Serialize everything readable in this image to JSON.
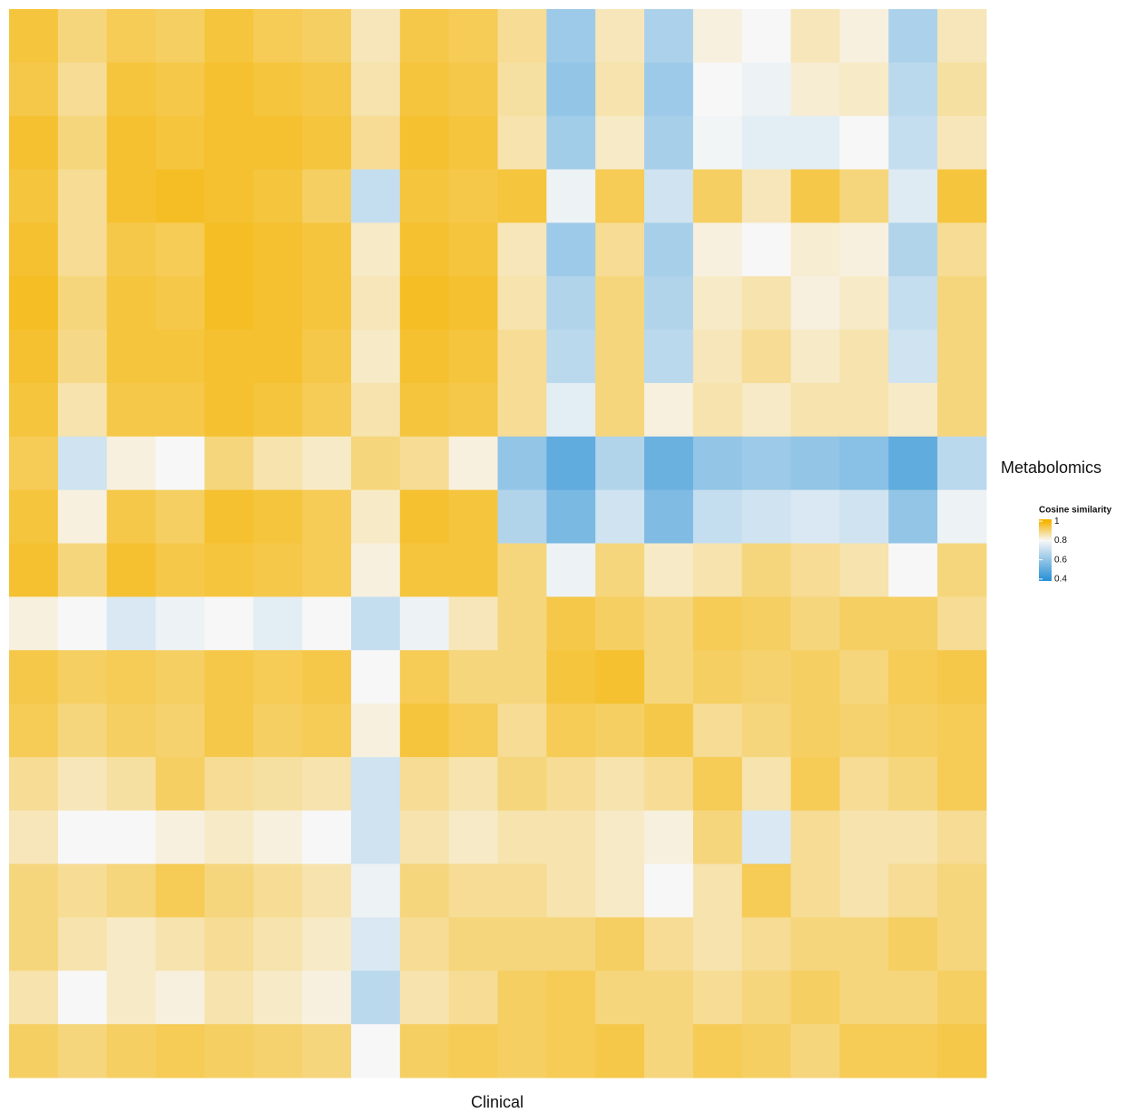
{
  "chart_data": {
    "type": "heatmap",
    "xlabel": "Clinical",
    "ylabel": "Metabolomics",
    "legend_title": "Cosine similarity",
    "clim": [
      0.38,
      1.02
    ],
    "colorbar_ticks": [
      1,
      0.8,
      0.6,
      0.4
    ],
    "colorscale": [
      {
        "value": 0.4,
        "color": "#2f93d6"
      },
      {
        "value": 0.8,
        "color": "#f7f7f7"
      },
      {
        "value": 1,
        "color": "#f5b400"
      }
    ],
    "values": [
      [
        0.95,
        0.9,
        0.93,
        0.92,
        0.95,
        0.93,
        0.92,
        0.85,
        0.94,
        0.93,
        0.88,
        0.62,
        0.85,
        0.65,
        0.82,
        0.8,
        0.85,
        0.82,
        0.65,
        0.85
      ],
      [
        0.94,
        0.88,
        0.95,
        0.94,
        0.96,
        0.95,
        0.94,
        0.86,
        0.95,
        0.94,
        0.87,
        0.6,
        0.86,
        0.62,
        0.8,
        0.78,
        0.83,
        0.84,
        0.68,
        0.87
      ],
      [
        0.96,
        0.9,
        0.96,
        0.95,
        0.96,
        0.96,
        0.95,
        0.88,
        0.96,
        0.95,
        0.86,
        0.63,
        0.84,
        0.64,
        0.79,
        0.76,
        0.76,
        0.8,
        0.7,
        0.85
      ],
      [
        0.95,
        0.88,
        0.96,
        0.97,
        0.96,
        0.95,
        0.92,
        0.7,
        0.95,
        0.94,
        0.95,
        0.78,
        0.93,
        0.72,
        0.92,
        0.85,
        0.94,
        0.9,
        0.75,
        0.95
      ],
      [
        0.96,
        0.88,
        0.94,
        0.93,
        0.97,
        0.96,
        0.95,
        0.84,
        0.96,
        0.95,
        0.85,
        0.62,
        0.88,
        0.64,
        0.82,
        0.8,
        0.83,
        0.82,
        0.66,
        0.88
      ],
      [
        0.97,
        0.9,
        0.95,
        0.94,
        0.97,
        0.96,
        0.95,
        0.85,
        0.97,
        0.96,
        0.86,
        0.66,
        0.9,
        0.66,
        0.84,
        0.86,
        0.82,
        0.84,
        0.7,
        0.9
      ],
      [
        0.96,
        0.89,
        0.95,
        0.95,
        0.96,
        0.96,
        0.94,
        0.84,
        0.96,
        0.95,
        0.88,
        0.68,
        0.9,
        0.68,
        0.85,
        0.88,
        0.84,
        0.86,
        0.72,
        0.9
      ],
      [
        0.95,
        0.86,
        0.94,
        0.94,
        0.96,
        0.95,
        0.93,
        0.86,
        0.95,
        0.94,
        0.88,
        0.76,
        0.9,
        0.82,
        0.86,
        0.84,
        0.86,
        0.86,
        0.84,
        0.9
      ],
      [
        0.93,
        0.72,
        0.82,
        0.8,
        0.9,
        0.86,
        0.84,
        0.9,
        0.88,
        0.82,
        0.6,
        0.5,
        0.66,
        0.52,
        0.6,
        0.62,
        0.6,
        0.58,
        0.5,
        0.68
      ],
      [
        0.95,
        0.82,
        0.94,
        0.92,
        0.96,
        0.95,
        0.93,
        0.84,
        0.96,
        0.95,
        0.66,
        0.55,
        0.72,
        0.56,
        0.7,
        0.72,
        0.74,
        0.72,
        0.6,
        0.78
      ],
      [
        0.96,
        0.9,
        0.96,
        0.94,
        0.95,
        0.94,
        0.93,
        0.82,
        0.95,
        0.95,
        0.9,
        0.78,
        0.9,
        0.84,
        0.86,
        0.9,
        0.88,
        0.86,
        0.8,
        0.9
      ],
      [
        0.82,
        0.8,
        0.74,
        0.78,
        0.8,
        0.76,
        0.8,
        0.7,
        0.78,
        0.85,
        0.9,
        0.94,
        0.92,
        0.9,
        0.93,
        0.92,
        0.9,
        0.92,
        0.92,
        0.88
      ],
      [
        0.94,
        0.92,
        0.93,
        0.92,
        0.94,
        0.93,
        0.94,
        0.8,
        0.93,
        0.9,
        0.9,
        0.95,
        0.96,
        0.9,
        0.92,
        0.91,
        0.92,
        0.9,
        0.93,
        0.94
      ],
      [
        0.93,
        0.9,
        0.92,
        0.91,
        0.94,
        0.92,
        0.93,
        0.82,
        0.95,
        0.93,
        0.88,
        0.93,
        0.92,
        0.94,
        0.88,
        0.9,
        0.92,
        0.91,
        0.92,
        0.93
      ],
      [
        0.88,
        0.85,
        0.87,
        0.92,
        0.88,
        0.87,
        0.86,
        0.72,
        0.88,
        0.86,
        0.9,
        0.88,
        0.86,
        0.88,
        0.93,
        0.86,
        0.93,
        0.88,
        0.9,
        0.93
      ],
      [
        0.85,
        0.8,
        0.8,
        0.82,
        0.84,
        0.82,
        0.8,
        0.72,
        0.86,
        0.84,
        0.86,
        0.86,
        0.84,
        0.82,
        0.9,
        0.74,
        0.88,
        0.86,
        0.86,
        0.88
      ],
      [
        0.9,
        0.88,
        0.9,
        0.93,
        0.9,
        0.88,
        0.86,
        0.78,
        0.9,
        0.88,
        0.88,
        0.86,
        0.84,
        0.8,
        0.86,
        0.93,
        0.88,
        0.86,
        0.88,
        0.9
      ],
      [
        0.9,
        0.86,
        0.84,
        0.86,
        0.88,
        0.86,
        0.84,
        0.74,
        0.88,
        0.9,
        0.9,
        0.9,
        0.92,
        0.88,
        0.86,
        0.88,
        0.9,
        0.9,
        0.92,
        0.9
      ],
      [
        0.86,
        0.8,
        0.84,
        0.82,
        0.86,
        0.84,
        0.82,
        0.68,
        0.86,
        0.88,
        0.92,
        0.93,
        0.9,
        0.9,
        0.88,
        0.9,
        0.92,
        0.9,
        0.9,
        0.92
      ],
      [
        0.92,
        0.9,
        0.92,
        0.93,
        0.92,
        0.91,
        0.9,
        0.8,
        0.92,
        0.93,
        0.92,
        0.93,
        0.94,
        0.9,
        0.93,
        0.92,
        0.9,
        0.93,
        0.93,
        0.94
      ]
    ]
  }
}
